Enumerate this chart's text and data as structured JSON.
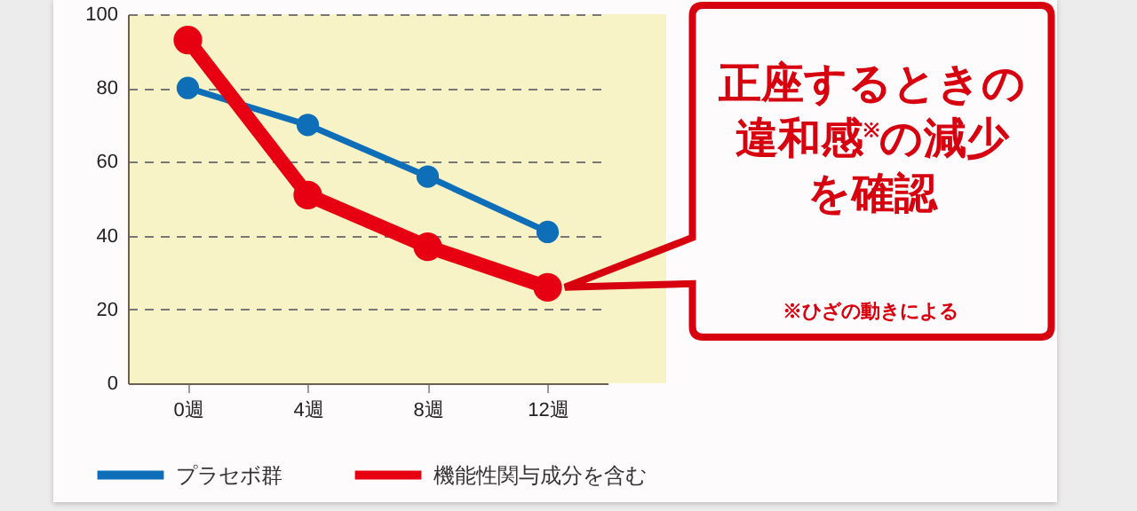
{
  "chart_data": {
    "type": "line",
    "categories": [
      "0週",
      "4週",
      "8週",
      "12週"
    ],
    "series": [
      {
        "name": "プラセボ群",
        "color": "#0e6eb8",
        "values": [
          80,
          70,
          56,
          41
        ]
      },
      {
        "name": "機能性関与成分を含む",
        "color": "#e60012",
        "values": [
          93,
          51,
          37,
          26
        ]
      }
    ],
    "ylim": [
      0,
      100
    ],
    "yticks": [
      0,
      20,
      40,
      60,
      80,
      100
    ],
    "grid": "y",
    "legend": "bottom left",
    "marker": "circle",
    "line_style": "solid",
    "annotations": [
      "正座するときの違和感$^{※}$の減少を確認",
      "※ひざの動きによる"
    ]
  }
}
